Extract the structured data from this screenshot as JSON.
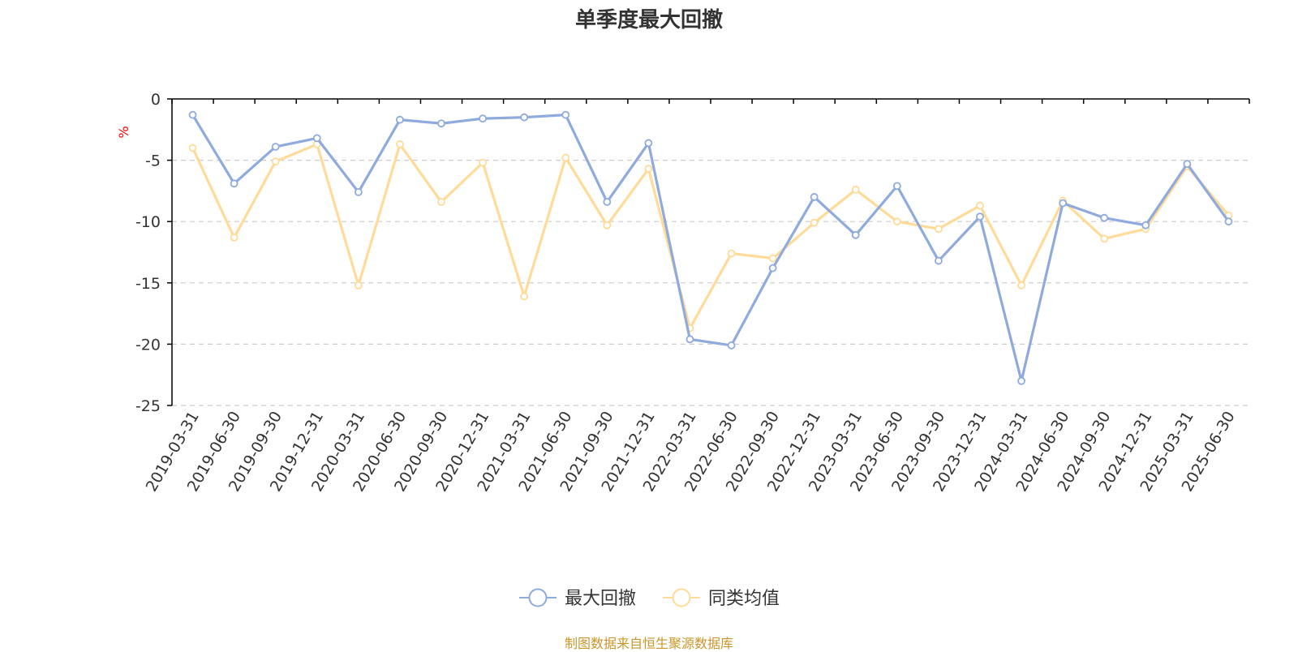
{
  "title": "单季度最大回撤",
  "source_note": "制图数据来自恒生聚源数据库",
  "colors": {
    "series1": "#8faadc",
    "series2": "#ffdb99",
    "unit": "#ff0000",
    "grid": "#cccccc",
    "axis": "#000000",
    "source": "#c9962b"
  },
  "chart_data": {
    "type": "line",
    "title": "单季度最大回撤",
    "ylabel": "%",
    "xlabel": "",
    "ylim": [
      -25,
      0
    ],
    "yticks": [
      0,
      -5,
      -10,
      -15,
      -20,
      -25
    ],
    "grid": "horizontal dashed",
    "legend_position": "bottom-center",
    "categories": [
      "2019-03-31",
      "2019-06-30",
      "2019-09-30",
      "2019-12-31",
      "2020-03-31",
      "2020-06-30",
      "2020-09-30",
      "2020-12-31",
      "2021-03-31",
      "2021-06-30",
      "2021-09-30",
      "2021-12-31",
      "2022-03-31",
      "2022-06-30",
      "2022-09-30",
      "2022-12-31",
      "2023-03-31",
      "2023-06-30",
      "2023-09-30",
      "2023-12-31",
      "2024-03-31",
      "2024-06-30",
      "2024-09-30",
      "2024-12-31",
      "2025-03-31",
      "2025-06-30"
    ],
    "series": [
      {
        "name": "最大回撤",
        "values": [
          -1.3,
          -6.9,
          -3.9,
          -3.2,
          -7.6,
          -1.7,
          -2.0,
          -1.6,
          -1.5,
          -1.3,
          -8.4,
          -3.6,
          -19.6,
          -20.1,
          -13.8,
          -8.0,
          -11.1,
          -7.1,
          -13.2,
          -9.6,
          -23.0,
          -8.5,
          -9.7,
          -10.3,
          -5.3,
          -10.0
        ]
      },
      {
        "name": "同类均值",
        "values": [
          -4.0,
          -11.3,
          -5.1,
          -3.7,
          -15.2,
          -3.7,
          -8.4,
          -5.2,
          -16.1,
          -4.8,
          -10.3,
          -5.7,
          -18.7,
          -12.6,
          -13.0,
          -10.1,
          -7.4,
          -10.0,
          -10.6,
          -8.7,
          -15.2,
          -8.3,
          -11.4,
          -10.6,
          -5.5,
          -9.5
        ]
      }
    ]
  }
}
